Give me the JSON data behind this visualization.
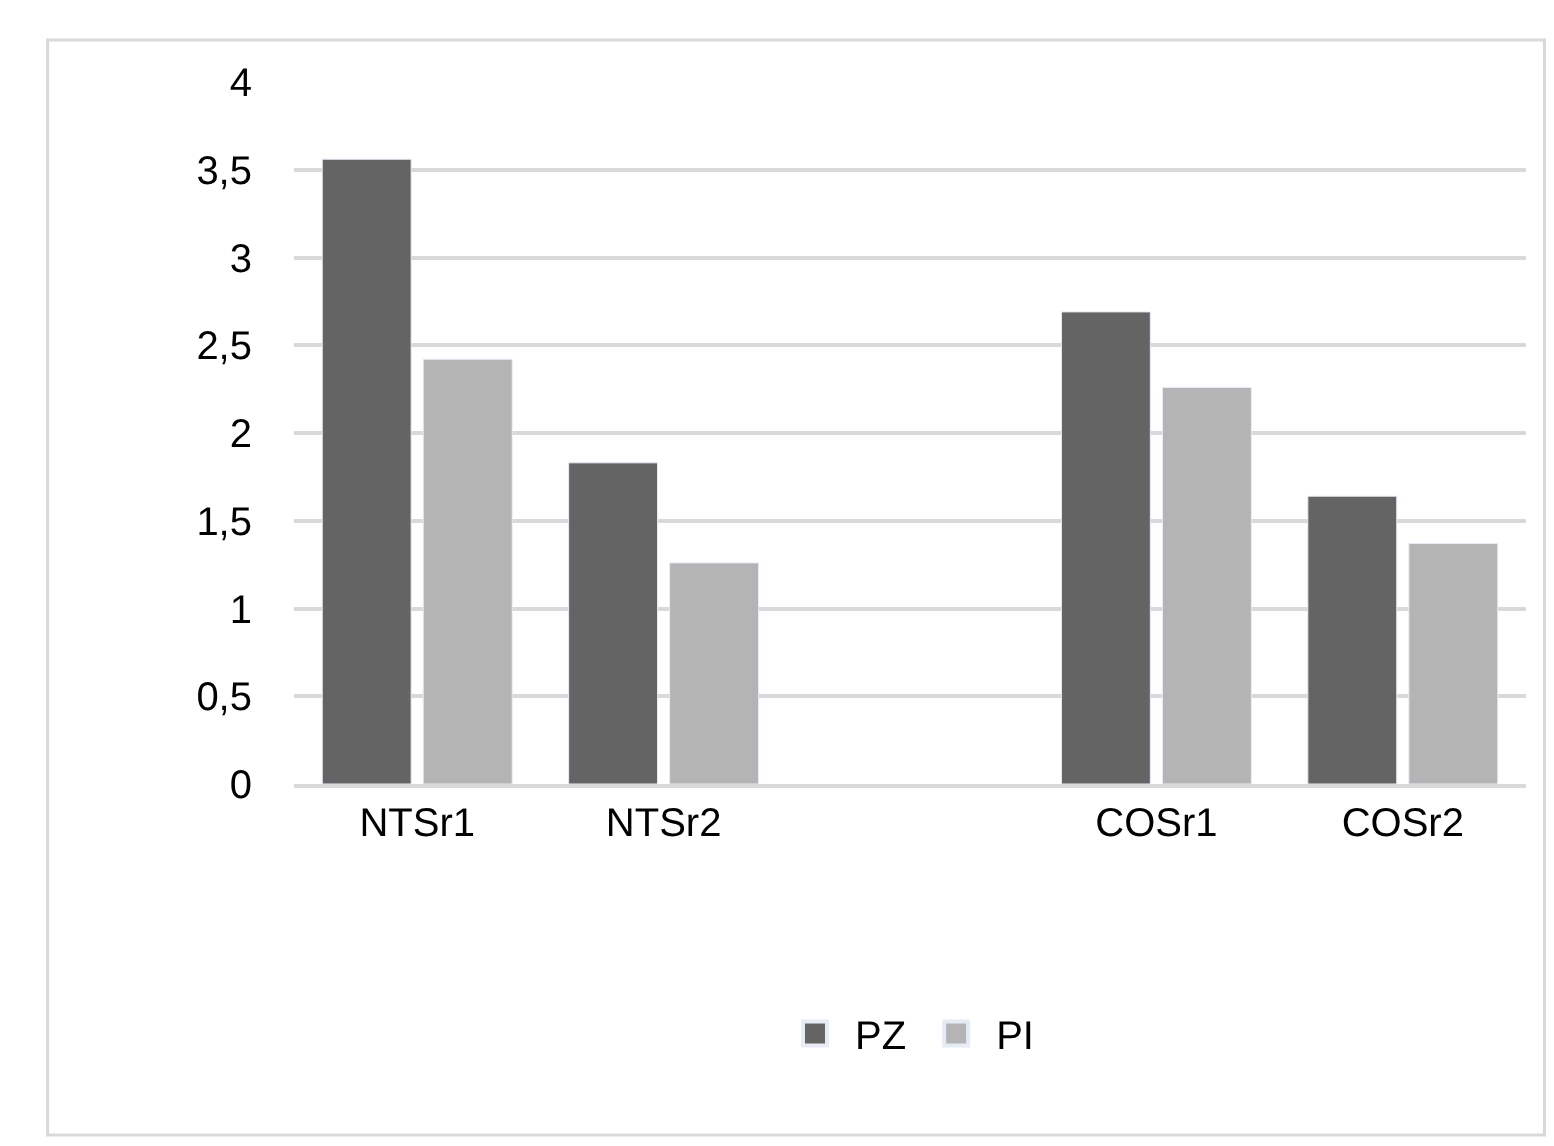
{
  "chart_data": {
    "type": "bar",
    "categories": [
      "NTSr1",
      "NTSr2",
      null,
      "COSr1",
      "COSr2"
    ],
    "series": [
      {
        "name": "PZ",
        "color": "#646464",
        "values": [
          3.56,
          1.83,
          null,
          2.69,
          1.64
        ]
      },
      {
        "name": "PI",
        "color": "#b4b4b4",
        "values": [
          2.42,
          1.26,
          null,
          2.26,
          1.37
        ]
      }
    ],
    "ylim": [
      0,
      4
    ],
    "yticks": [
      0,
      {
        "value": 0.5,
        "label": "0,5"
      },
      1,
      {
        "value": 1.5,
        "label": "1,5"
      },
      2,
      {
        "value": 2.5,
        "label": "2,5"
      },
      3,
      {
        "value": 3.5,
        "label": "3,5"
      },
      4
    ],
    "grid": "y",
    "legend": "bottom"
  }
}
